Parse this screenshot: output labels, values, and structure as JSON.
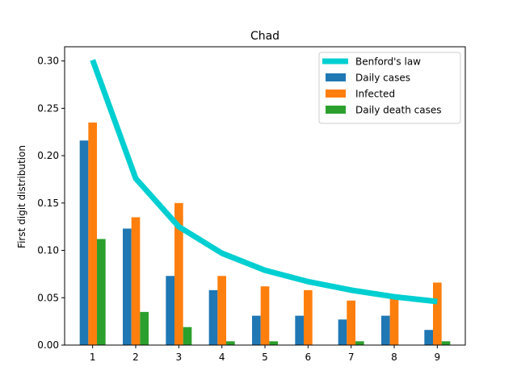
{
  "chart_data": {
    "type": "bar",
    "title": "Chad",
    "xlabel": "",
    "ylabel": "First digit distribution",
    "categories": [
      "1",
      "2",
      "3",
      "4",
      "5",
      "6",
      "7",
      "8",
      "9"
    ],
    "ylim": [
      0,
      0.315
    ],
    "yticks": [
      "0.00",
      "0.05",
      "0.10",
      "0.15",
      "0.20",
      "0.25",
      "0.30"
    ],
    "grid": false,
    "legend_position": "top-right",
    "series": [
      {
        "name": "Daily cases",
        "type": "bar",
        "color": "#1f77b4",
        "values": [
          0.216,
          0.123,
          0.073,
          0.058,
          0.031,
          0.031,
          0.027,
          0.031,
          0.016
        ]
      },
      {
        "name": "Infected",
        "type": "bar",
        "color": "#ff7f0e",
        "values": [
          0.235,
          0.135,
          0.15,
          0.073,
          0.062,
          0.058,
          0.047,
          0.05,
          0.066
        ]
      },
      {
        "name": "Daily death cases",
        "type": "bar",
        "color": "#2ca02c",
        "values": [
          0.112,
          0.035,
          0.019,
          0.004,
          0.004,
          0.0,
          0.004,
          0.0,
          0.004
        ]
      }
    ],
    "line": {
      "name": "Benford's law",
      "type": "line",
      "color": "#00cfd1",
      "values": [
        0.301,
        0.176,
        0.125,
        0.097,
        0.079,
        0.067,
        0.058,
        0.051,
        0.046
      ]
    }
  }
}
